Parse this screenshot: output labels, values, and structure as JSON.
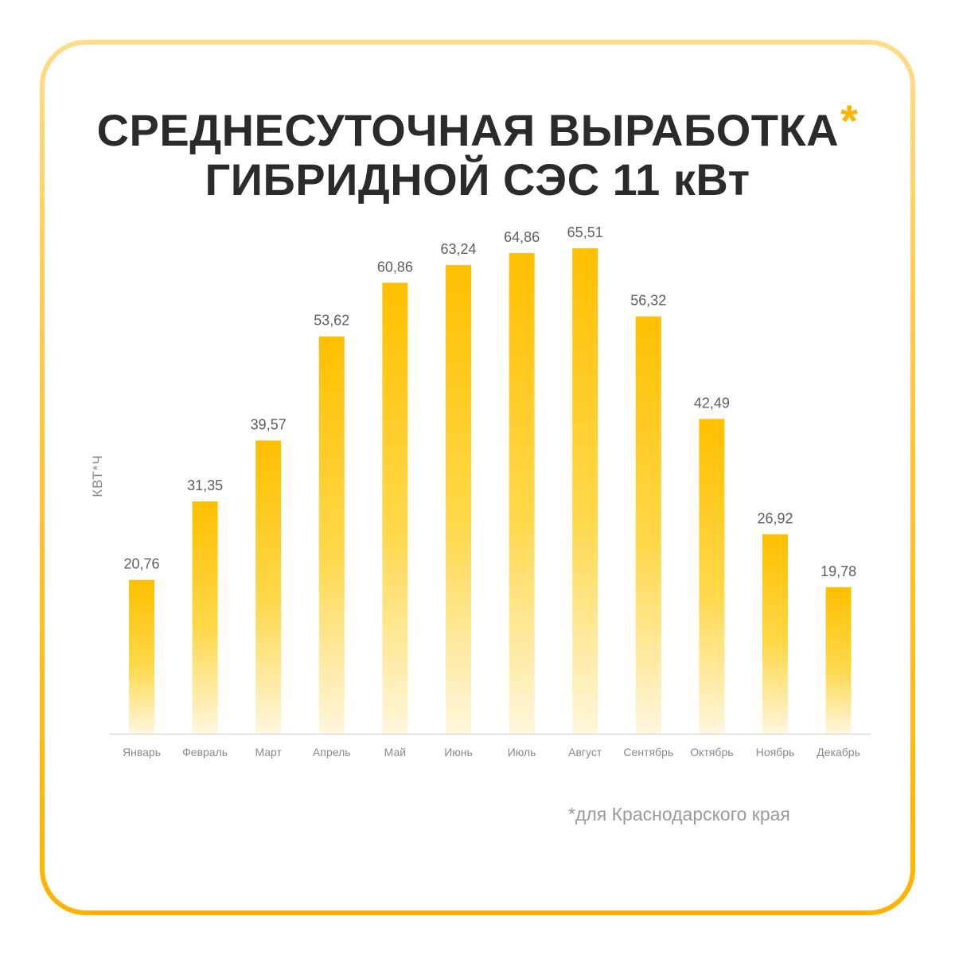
{
  "title_line1": "СРЕДНЕСУТОЧНАЯ ВЫРАБОТКА",
  "title_asterisk": "*",
  "title_line2": "ГИБРИДНОЙ СЭС 11 кВт",
  "footnote": "*для Краснодарского края",
  "colors": {
    "bar_top": "#ffbf00",
    "bar_bottom": "#fff6dd",
    "accent": "#ffb400",
    "axis": "#dddddd"
  },
  "chart_data": {
    "type": "bar",
    "ylabel": "КВТ*Ч",
    "xlabel": "",
    "categories": [
      "Январь",
      "Февраль",
      "Март",
      "Апрель",
      "Май",
      "Июнь",
      "Июль",
      "Август",
      "Сентябрь",
      "Октябрь",
      "Ноябрь",
      "Декабрь"
    ],
    "values": [
      20.76,
      31.35,
      39.57,
      53.62,
      60.86,
      63.24,
      64.86,
      65.51,
      56.32,
      42.49,
      26.92,
      19.78
    ],
    "value_labels": [
      "20,76",
      "31,35",
      "39,57",
      "53,62",
      "60,86",
      "63,24",
      "64,86",
      "65,51",
      "56,32",
      "42,49",
      "26,92",
      "19,78"
    ],
    "ylim": [
      0,
      65.51
    ],
    "grid": false,
    "legend": "none"
  }
}
